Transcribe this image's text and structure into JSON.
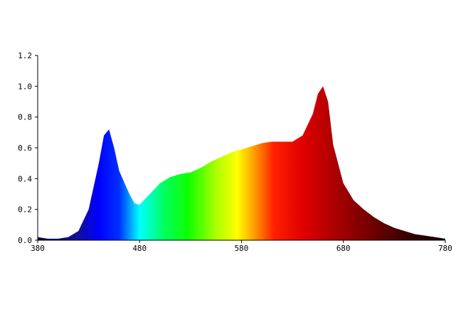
{
  "chart_data": {
    "type": "area",
    "x": [
      380,
      390,
      400,
      410,
      420,
      430,
      440,
      445,
      450,
      455,
      460,
      470,
      475,
      480,
      490,
      500,
      510,
      520,
      530,
      540,
      550,
      560,
      570,
      580,
      590,
      600,
      610,
      620,
      630,
      640,
      650,
      655,
      660,
      665,
      670,
      680,
      690,
      700,
      710,
      720,
      730,
      740,
      750,
      760,
      770,
      780
    ],
    "values": [
      0.02,
      0.01,
      0.01,
      0.02,
      0.06,
      0.2,
      0.5,
      0.68,
      0.72,
      0.6,
      0.45,
      0.3,
      0.24,
      0.23,
      0.3,
      0.37,
      0.41,
      0.43,
      0.44,
      0.47,
      0.51,
      0.54,
      0.57,
      0.59,
      0.61,
      0.63,
      0.64,
      0.64,
      0.64,
      0.68,
      0.82,
      0.95,
      1.0,
      0.9,
      0.62,
      0.37,
      0.26,
      0.2,
      0.15,
      0.11,
      0.08,
      0.06,
      0.04,
      0.03,
      0.02,
      0.01
    ],
    "xlim": [
      380,
      780
    ],
    "xticks": [
      380,
      480,
      580,
      680,
      780
    ],
    "ylim": [
      0,
      1.2
    ],
    "yticks": [
      {
        "value": 0,
        "label": "0.0"
      },
      {
        "value": 0.2,
        "label": "0.2"
      },
      {
        "value": 0.4,
        "label": "0.4"
      },
      {
        "value": 0.6,
        "label": "0.6"
      },
      {
        "value": 0.8,
        "label": "0.8"
      },
      {
        "value": 1.0,
        "label": "1.0"
      },
      {
        "value": 1.2,
        "label": "1.2"
      }
    ]
  }
}
